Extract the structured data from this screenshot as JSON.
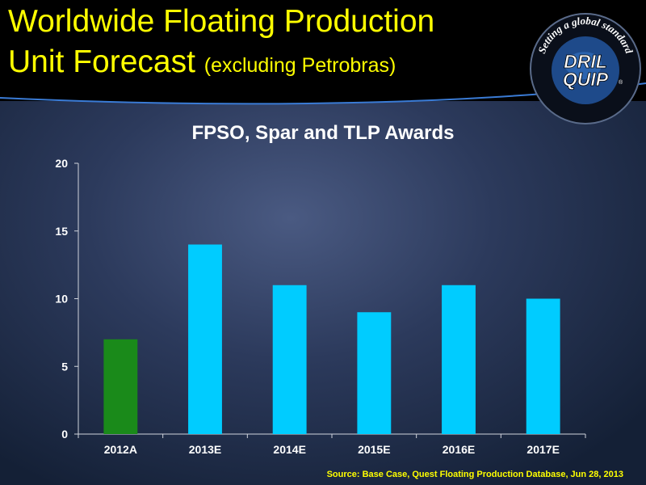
{
  "slide": {
    "title_line1": "Worldwide Floating Production",
    "title_line2_main": "Unit Forecast",
    "title_line2_sub": "(excluding Petrobras)",
    "source": "Source: Base Case, Quest Floating Production Database, Jun 28, 2013"
  },
  "logo": {
    "tagline": "Setting a global standard",
    "line1": "DRIL",
    "line2": "QUIP",
    "mark": "®"
  },
  "colors": {
    "title": "#ffff00",
    "actual_bar": "#1a8a1a",
    "estimate_bar": "#00ccff",
    "background": "#2c3a5c"
  },
  "chart_data": {
    "type": "bar",
    "title": "FPSO, Spar and TLP Awards",
    "categories": [
      "2012A",
      "2013E",
      "2014E",
      "2015E",
      "2016E",
      "2017E"
    ],
    "values": [
      7,
      14,
      11,
      9,
      11,
      10
    ],
    "bar_colors": [
      "#1a8a1a",
      "#00ccff",
      "#00ccff",
      "#00ccff",
      "#00ccff",
      "#00ccff"
    ],
    "ylim": [
      0,
      20
    ],
    "yticks": [
      0,
      5,
      10,
      15,
      20
    ],
    "xlabel": "",
    "ylabel": "",
    "grid": false,
    "legend": "none"
  }
}
